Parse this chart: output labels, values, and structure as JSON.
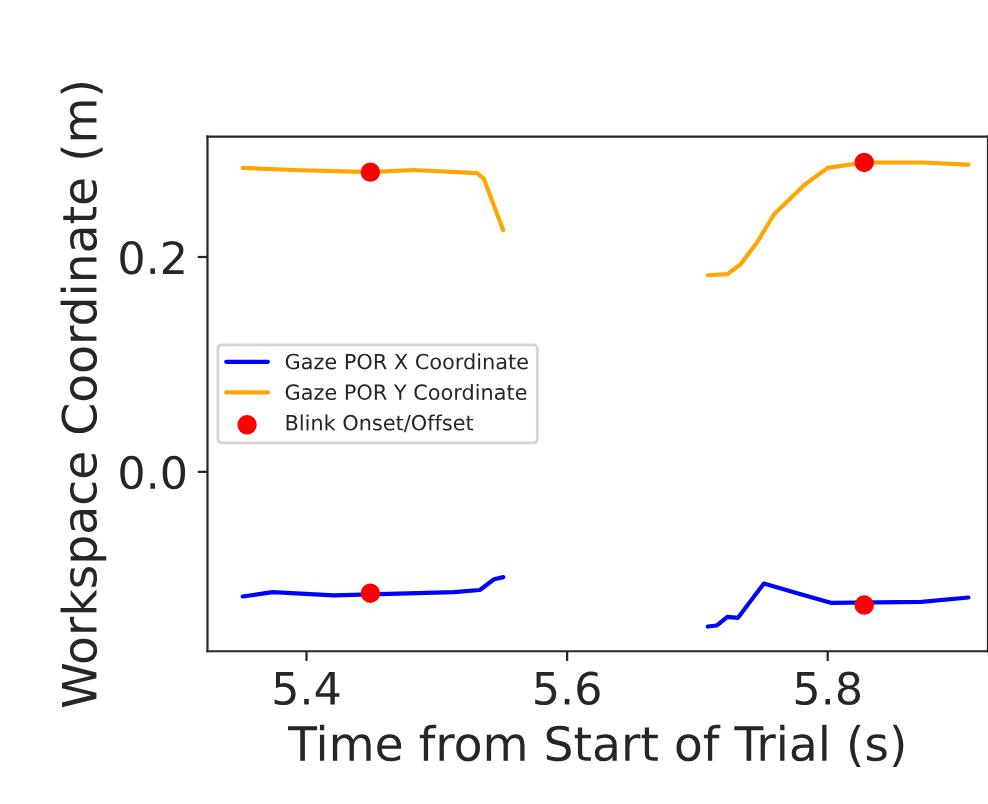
{
  "chart_data": {
    "type": "line",
    "xlabel": "Time from Start of Trial (s)",
    "ylabel": "Workspace Coordinate (m)",
    "xlim": [
      5.324,
      5.923
    ],
    "ylim": [
      -0.167,
      0.312
    ],
    "xticks": [
      5.4,
      5.6,
      5.8
    ],
    "yticks": [
      {
        "value": 0,
        "label": "0.0"
      },
      0.2
    ],
    "grid": false,
    "legend": "left",
    "marker": "none",
    "line_style": "solid",
    "series": [
      {
        "name": "Gaze POR X Coordinate",
        "color": "#0000ff",
        "x": [
          5.351,
          5.374,
          5.421,
          5.513,
          5.533,
          5.544,
          5.551,
          null,
          5.708,
          5.715,
          5.723,
          5.731,
          5.751,
          5.774,
          5.803,
          5.872,
          5.908
        ],
        "values": [
          -0.116,
          -0.112,
          -0.115,
          -0.112,
          -0.11,
          -0.1,
          -0.098,
          null,
          -0.144,
          -0.143,
          -0.135,
          -0.136,
          -0.104,
          -0.112,
          -0.122,
          -0.121,
          -0.117
        ]
      },
      {
        "name": "Gaze POR Y Coordinate",
        "color": "#ffa500",
        "x": [
          5.351,
          5.39,
          5.449,
          5.482,
          5.531,
          5.536,
          5.551,
          null,
          5.708,
          5.723,
          5.733,
          5.746,
          5.759,
          5.782,
          5.8,
          5.828,
          5.872,
          5.908
        ],
        "values": [
          0.283,
          0.281,
          0.279,
          0.281,
          0.278,
          0.273,
          0.225,
          null,
          0.183,
          0.184,
          0.193,
          0.214,
          0.24,
          0.267,
          0.283,
          0.288,
          0.288,
          0.286
        ]
      },
      {
        "name": "Blink Onset/Offset",
        "type": "scatter",
        "color": "#ff0000",
        "marker": "circle",
        "x": [
          5.449,
          5.449,
          5.828,
          5.828
        ],
        "values": [
          0.279,
          -0.113,
          0.288,
          -0.124
        ]
      }
    ]
  }
}
